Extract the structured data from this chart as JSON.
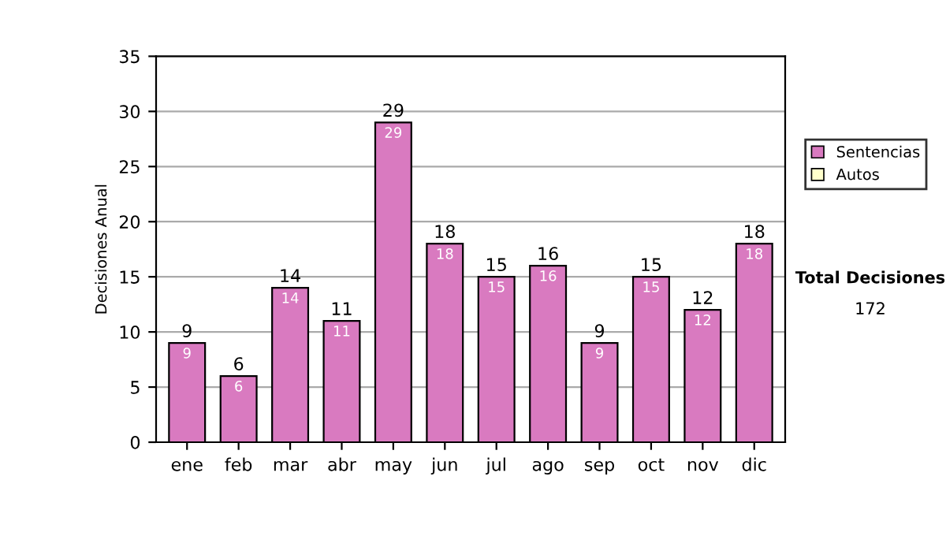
{
  "chart_data": {
    "type": "bar",
    "stacked": true,
    "ylabel": "Decisiones Anual",
    "categories": [
      "ene",
      "feb",
      "mar",
      "abr",
      "may",
      "jun",
      "jul",
      "ago",
      "sep",
      "oct",
      "nov",
      "dic"
    ],
    "series": [
      {
        "name": "Sentencias",
        "color": "#d97ac0",
        "values": [
          9,
          6,
          14,
          11,
          29,
          18,
          15,
          16,
          9,
          15,
          12,
          18
        ],
        "value_labels": [
          "9",
          "6",
          "14",
          "11",
          "29",
          "18",
          "15",
          "16",
          "9",
          "15",
          "12",
          "18"
        ]
      },
      {
        "name": "Autos",
        "color": "#ffffcc",
        "values": [
          0,
          0,
          0,
          0,
          0,
          0,
          0,
          0,
          0,
          0,
          0,
          0
        ]
      }
    ],
    "totals": [
      "9",
      "6",
      "14",
      "11",
      "29",
      "18",
      "15",
      "16",
      "9",
      "15",
      "12",
      "18"
    ],
    "ylim": [
      0,
      35
    ],
    "yticks": [
      0,
      5,
      10,
      15,
      20,
      25,
      30,
      35
    ],
    "grid": "y",
    "legend": "right",
    "annotations": [
      "Total Decisiones",
      "172"
    ]
  }
}
